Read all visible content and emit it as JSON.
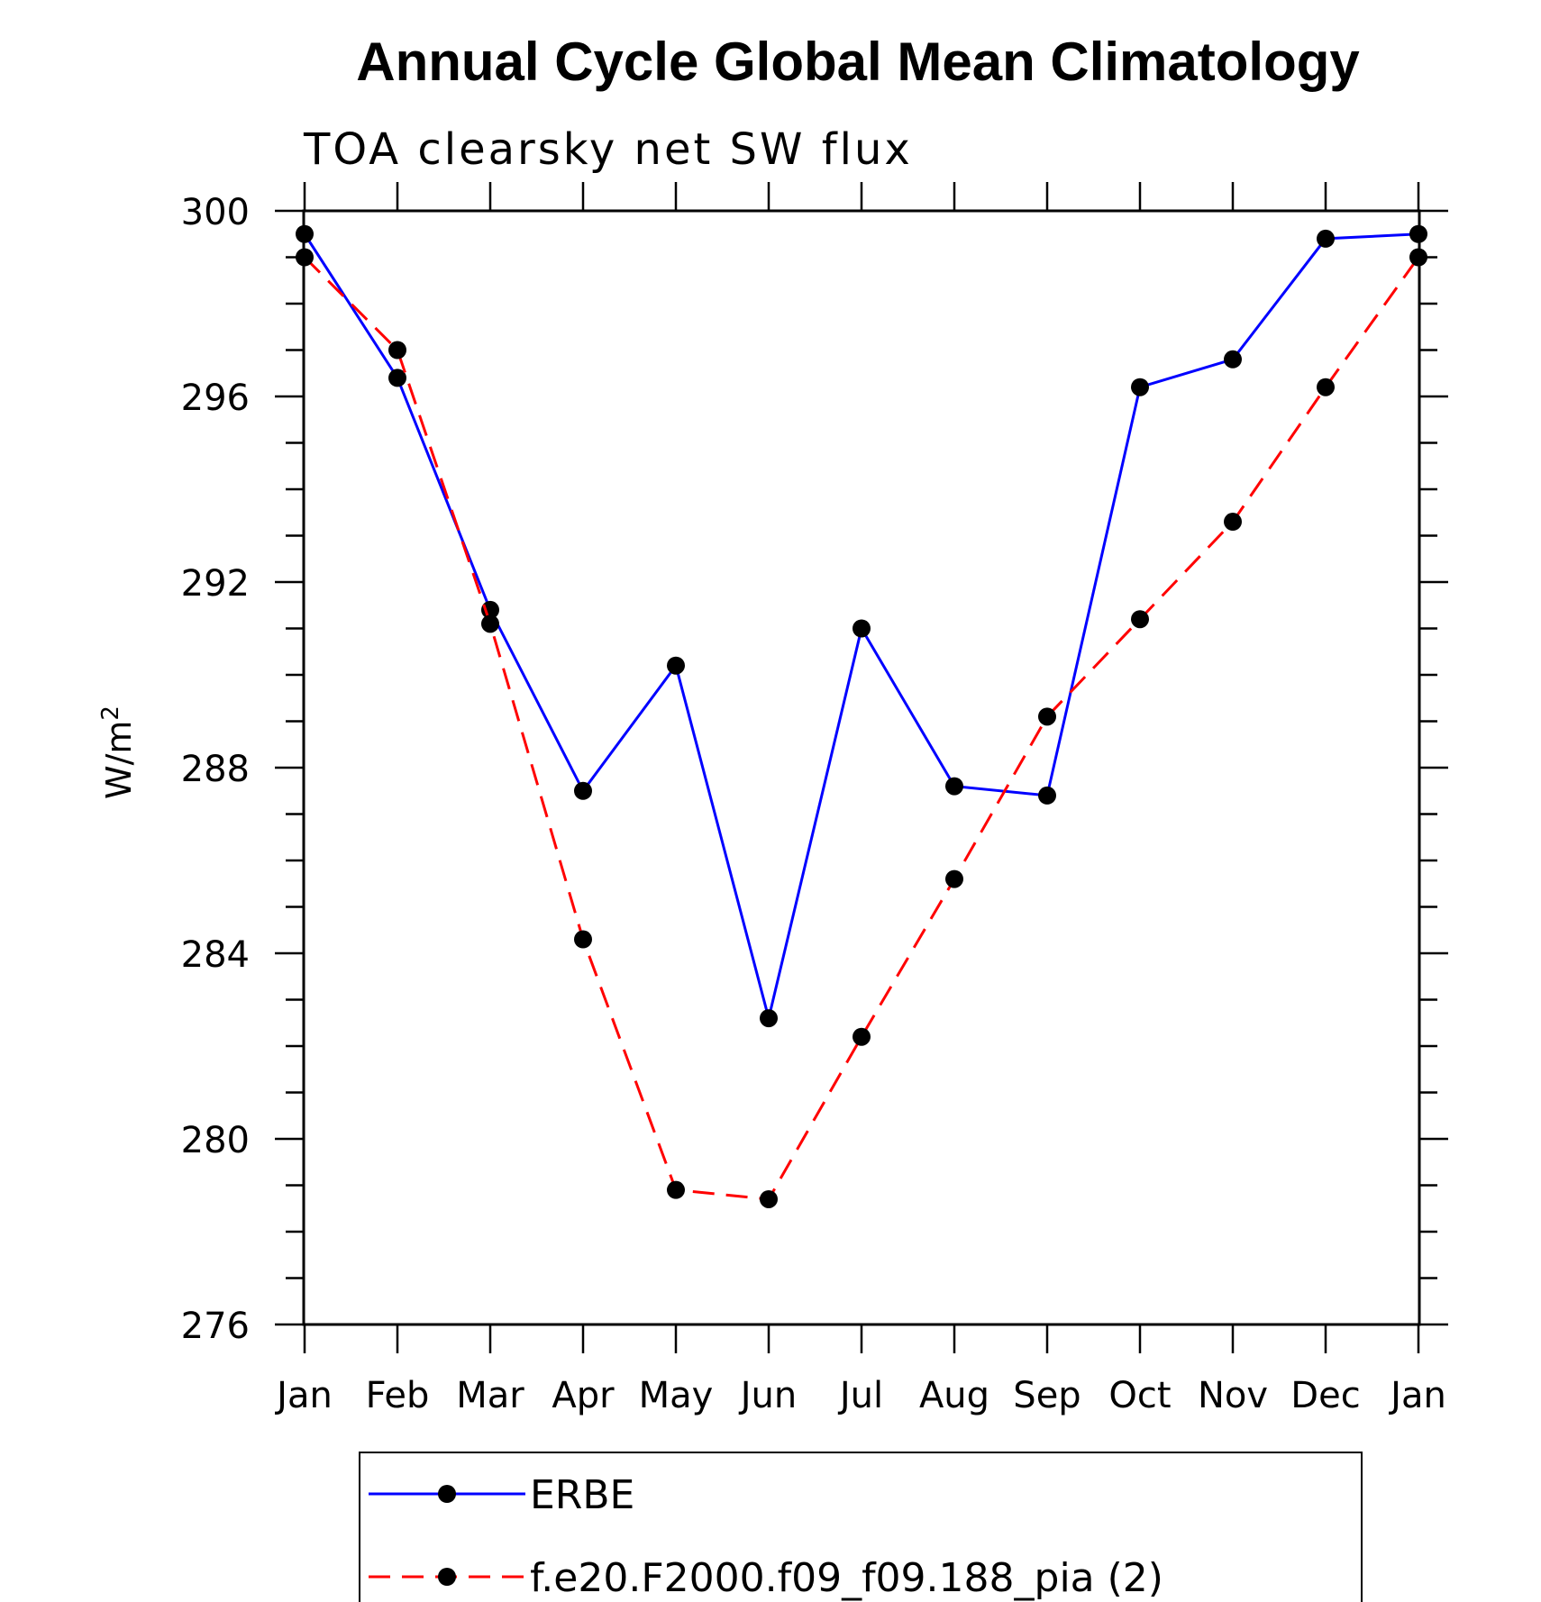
{
  "chart_data": {
    "type": "line",
    "title": "Annual Cycle Global Mean Climatology",
    "subtitle": "TOA clearsky net SW flux",
    "ylabel": "W/m",
    "ylabel_superscript": "2",
    "categories": [
      "Jan",
      "Feb",
      "Mar",
      "Apr",
      "May",
      "Jun",
      "Jul",
      "Aug",
      "Sep",
      "Oct",
      "Nov",
      "Dec",
      "Jan"
    ],
    "ylim": [
      276,
      300
    ],
    "yticks": [
      276,
      280,
      284,
      288,
      292,
      296,
      300
    ],
    "grid": false,
    "legend_position": "bottom",
    "series": [
      {
        "name": "ERBE",
        "color": "#0000ff",
        "line_style": "solid",
        "marker": "filled-circle",
        "values": [
          299.5,
          296.4,
          291.4,
          287.5,
          290.2,
          282.6,
          291.0,
          287.6,
          287.4,
          296.2,
          296.8,
          299.4,
          299.5
        ]
      },
      {
        "name": "f.e20.F2000.f09_f09.188_pia (2)",
        "color": "#ff0000",
        "line_style": "dashed",
        "marker": "filled-circle",
        "values": [
          299.0,
          297.0,
          291.1,
          284.3,
          278.9,
          278.7,
          282.2,
          285.6,
          289.1,
          291.2,
          293.3,
          296.2,
          299.0
        ]
      }
    ]
  }
}
